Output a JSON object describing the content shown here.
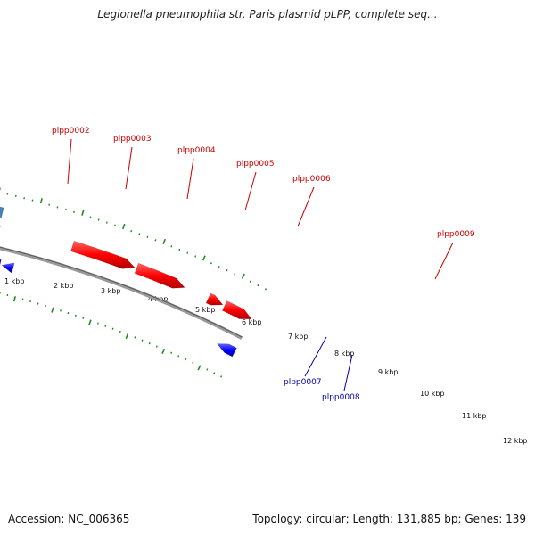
{
  "title": "Legionella pneumophila str. Paris plasmid pLPP, complete seq...",
  "footer": {
    "accession": "Accession: NC_006365",
    "summary": "Topology: circular; Length: 131,885 bp; Genes: 139"
  },
  "colors": {
    "forward_label": "#cc0000",
    "reverse_label": "#0000aa",
    "ruler_tick": "#228b22",
    "backbone": "#808080"
  },
  "kbp_labels": [
    "1 kbp",
    "2 kbp",
    "3 kbp",
    "4 kbp",
    "5 kbp",
    "6 kbp",
    "7 kbp",
    "8 kbp",
    "9 kbp",
    "10 kbp",
    "11 kbp",
    "12 kbp"
  ],
  "gene_labels": [
    {
      "name": "plpp0002",
      "strand": "forward"
    },
    {
      "name": "plpp0003",
      "strand": "forward"
    },
    {
      "name": "plpp0004",
      "strand": "forward"
    },
    {
      "name": "plpp0005",
      "strand": "forward"
    },
    {
      "name": "plpp0006",
      "strand": "forward"
    },
    {
      "name": "plpp0009",
      "strand": "forward"
    },
    {
      "name": "plpp0007",
      "strand": "reverse"
    },
    {
      "name": "plpp0008",
      "strand": "reverse"
    }
  ],
  "cog_colors": [
    "#f5e6a0",
    "#ff8c1a",
    "#ff1493",
    "#c0c0c0",
    "#4682b4"
  ]
}
